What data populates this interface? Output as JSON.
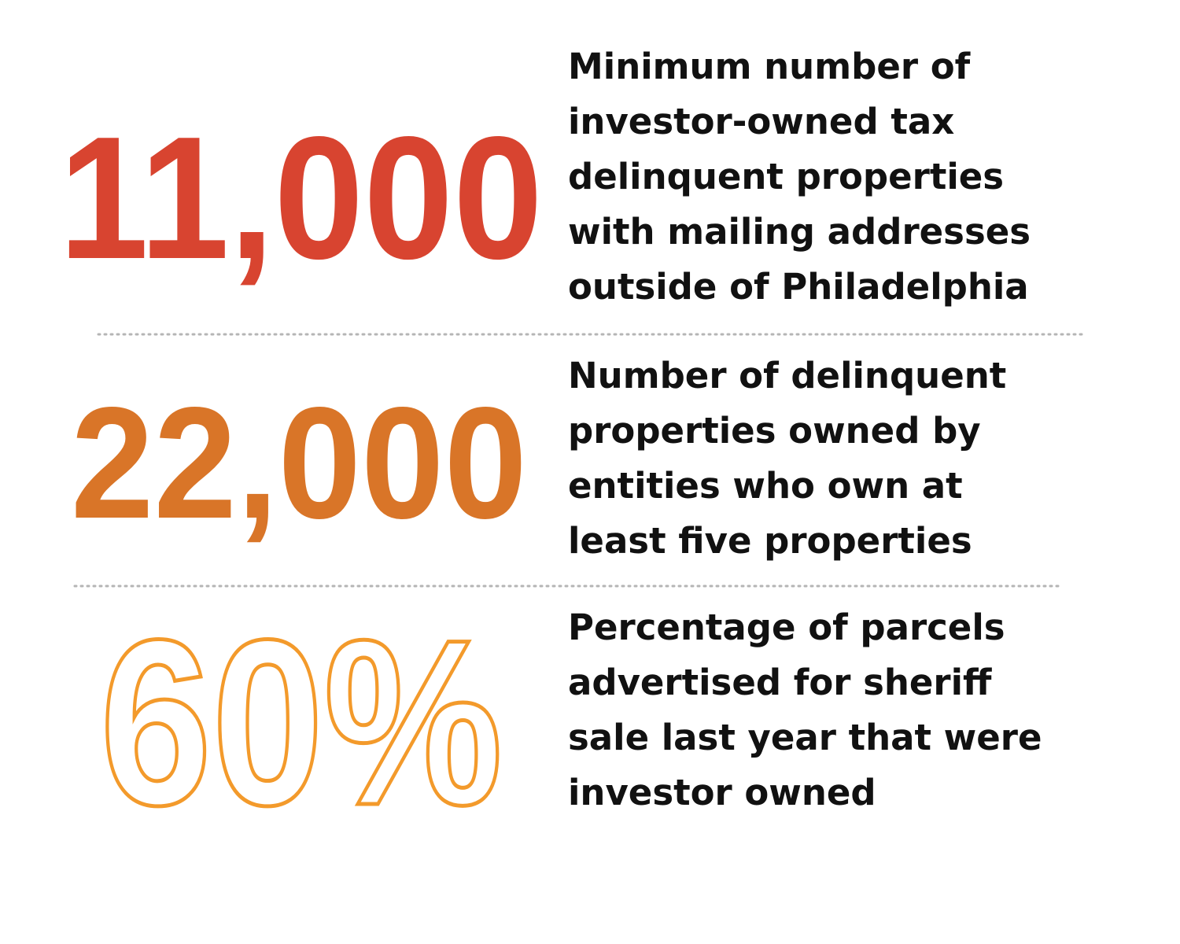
{
  "stats": [
    {
      "number": "11,000",
      "lines": [
        "Minimum number of",
        "investor-owned tax",
        "delinquent properties",
        "with mailing addresses",
        "outside of Philadelphia"
      ]
    },
    {
      "number": "22,000",
      "lines": [
        "Number of delinquent",
        "properties owned by",
        "entities who own at",
        "least five properties"
      ]
    },
    {
      "number": "60%",
      "lines": [
        "Percentage of parcels",
        "advertised for sheriff",
        "sale last year that were",
        "investor owned"
      ]
    }
  ]
}
